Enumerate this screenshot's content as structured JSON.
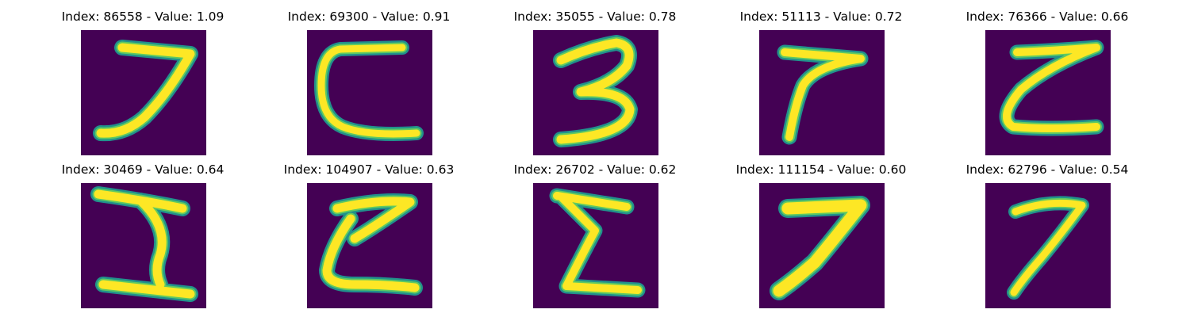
{
  "colors": {
    "background": "#440154",
    "edge": "#21918c",
    "mid": "#5ec962",
    "stroke": "#fde725",
    "title_text": "#000000"
  },
  "panels": [
    {
      "title": "Index: 86558 - Value: 1.09",
      "glyph": "seven-shape-glyph"
    },
    {
      "title": "Index: 69300 - Value: 0.91",
      "glyph": "c-shape-glyph"
    },
    {
      "title": "Index: 35055 - Value: 0.78",
      "glyph": "three-shape-glyph"
    },
    {
      "title": "Index: 51113 - Value: 0.72",
      "glyph": "seven-shape-glyph"
    },
    {
      "title": "Index: 76366 - Value: 0.66",
      "glyph": "z-shape-glyph"
    },
    {
      "title": "Index: 30469 - Value: 0.64",
      "glyph": "i-shape-glyph"
    },
    {
      "title": "Index: 104907 - Value: 0.63",
      "glyph": "z-shape-glyph"
    },
    {
      "title": "Index: 26702 - Value: 0.62",
      "glyph": "sigma-shape-glyph"
    },
    {
      "title": "Index: 111154 - Value: 0.60",
      "glyph": "seven-shape-glyph"
    },
    {
      "title": "Index: 62796 - Value: 0.54",
      "glyph": "seven-shape-glyph"
    }
  ]
}
